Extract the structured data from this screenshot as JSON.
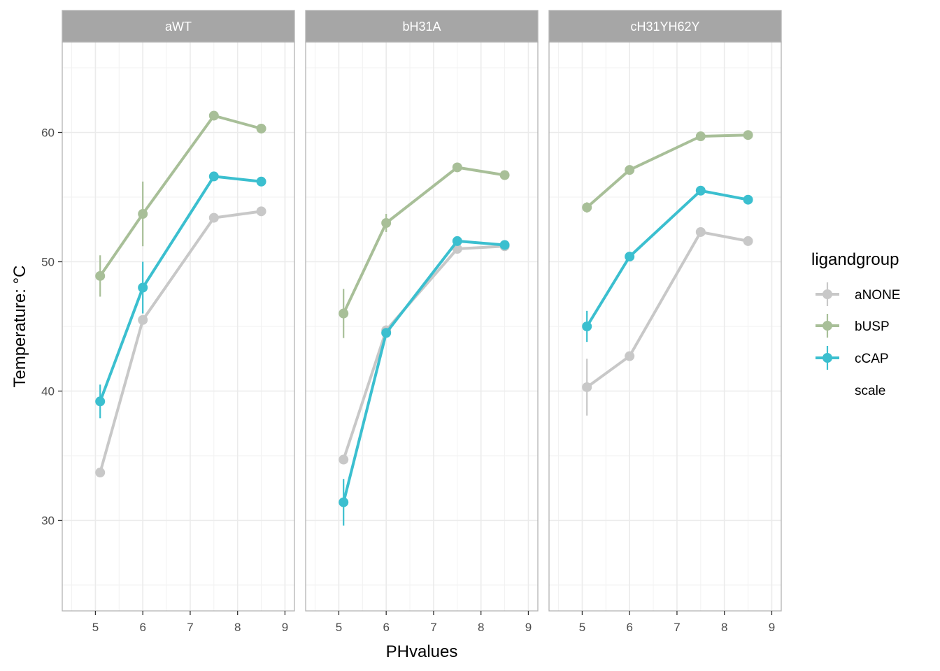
{
  "chart_data": {
    "type": "line",
    "facets": [
      "aWT",
      "bH31A",
      "cH31YH62Y"
    ],
    "xlabel": "PHvalues",
    "ylabel": "Temperature: °C",
    "xlim": [
      4.3,
      9.2
    ],
    "ylim": [
      23,
      67
    ],
    "xticks": [
      5,
      6,
      7,
      8,
      9
    ],
    "yticks": [
      30,
      40,
      50,
      60
    ],
    "grid": true,
    "legend": {
      "title": "ligandgroup",
      "position": "right",
      "entries": [
        "aNONE",
        "bUSP",
        "cCAP",
        "scale"
      ]
    },
    "colors": {
      "aNONE": "#c8c8c8",
      "bUSP": "#a8bf98",
      "cCAP": "#3bbfcf",
      "strip_bg": "#a6a6a6",
      "grid": "#ebebeb",
      "border": "#b3b3b3"
    },
    "series": [
      {
        "name": "aNONE",
        "panels": {
          "aWT": {
            "x": [
              5.1,
              6,
              7.5,
              8.5
            ],
            "y": [
              33.7,
              45.5,
              53.4,
              53.9
            ],
            "err": [
              0,
              0,
              0,
              0
            ]
          },
          "bH31A": {
            "x": [
              5.1,
              6,
              7.5,
              8.5
            ],
            "y": [
              34.7,
              44.7,
              51.0,
              51.2
            ],
            "err": [
              0,
              0,
              0,
              0
            ]
          },
          "cH31YH62Y": {
            "x": [
              5.1,
              6,
              7.5,
              8.5
            ],
            "y": [
              40.3,
              42.7,
              52.3,
              51.6
            ],
            "err": [
              2.2,
              0,
              0,
              0
            ]
          }
        }
      },
      {
        "name": "bUSP",
        "panels": {
          "aWT": {
            "x": [
              5.1,
              6,
              7.5,
              8.5
            ],
            "y": [
              48.9,
              53.7,
              61.3,
              60.3
            ],
            "err": [
              1.6,
              2.5,
              0,
              0
            ]
          },
          "bH31A": {
            "x": [
              5.1,
              6,
              7.5,
              8.5
            ],
            "y": [
              46.0,
              53.0,
              57.3,
              56.7
            ],
            "err": [
              1.9,
              0.7,
              0,
              0
            ]
          },
          "cH31YH62Y": {
            "x": [
              5.1,
              6,
              7.5,
              8.5
            ],
            "y": [
              54.2,
              57.1,
              59.7,
              59.8
            ],
            "err": [
              0.4,
              0,
              0,
              0
            ]
          }
        }
      },
      {
        "name": "cCAP",
        "panels": {
          "aWT": {
            "x": [
              5.1,
              6,
              7.5,
              8.5
            ],
            "y": [
              39.2,
              48.0,
              56.6,
              56.2
            ],
            "err": [
              1.3,
              2.0,
              0,
              0
            ]
          },
          "bH31A": {
            "x": [
              5.1,
              6,
              7.5,
              8.5
            ],
            "y": [
              31.4,
              44.5,
              51.6,
              51.3
            ],
            "err": [
              1.8,
              0,
              0,
              0
            ]
          },
          "cH31YH62Y": {
            "x": [
              5.1,
              6,
              7.5,
              8.5
            ],
            "y": [
              45.0,
              50.4,
              55.5,
              54.8
            ],
            "err": [
              1.2,
              0,
              0,
              0
            ]
          }
        }
      }
    ]
  }
}
